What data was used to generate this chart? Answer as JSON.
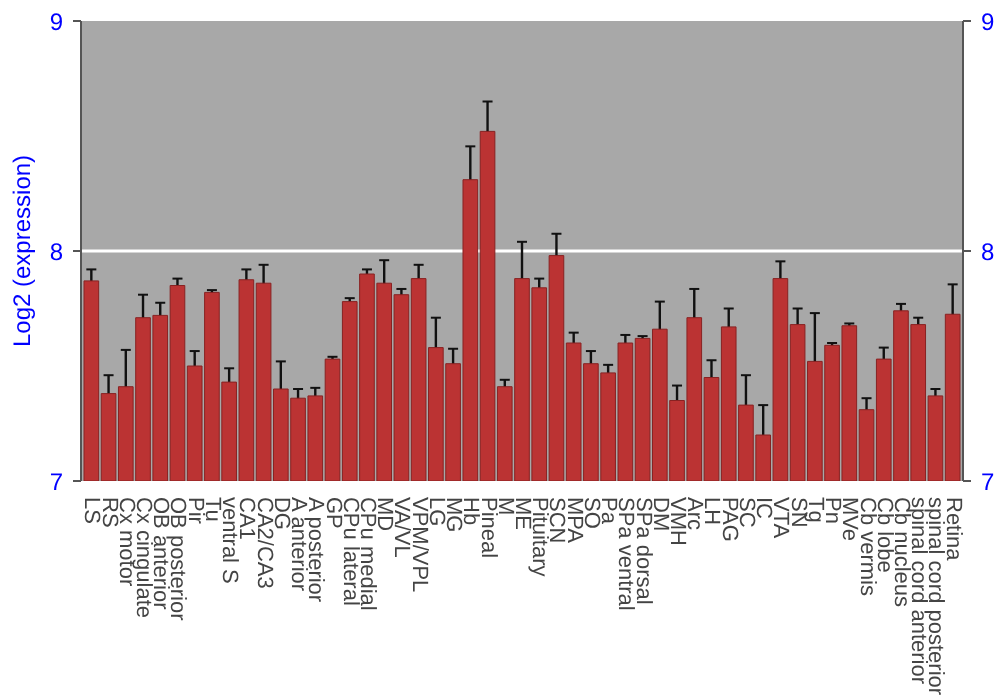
{
  "chart_data": {
    "type": "bar",
    "ylabel": "Log2 (expression)",
    "categories": [
      "LS",
      "RS",
      "Cx motor",
      "Cx cingulate",
      "OB anterior",
      "OB posterior",
      "Pir",
      "Tu",
      "ventral S",
      "CA1",
      "CA2/CA3",
      "DG",
      "A anterior",
      "A posterior",
      "GP",
      "CPu lateral",
      "CPu medial",
      "MD",
      "VA/VL",
      "VPM/VPL",
      "LG",
      "MG",
      "Hb",
      "Pineal",
      "M",
      "ME",
      "Pituitary",
      "SCN",
      "MPA",
      "SO",
      "Pa",
      "SPa ventral",
      "SPa dorsal",
      "DM",
      "VMH",
      "Arc",
      "LH",
      "PAG",
      "SC",
      "IC",
      "VTA",
      "SN",
      "Tg",
      "Pn",
      "MVe",
      "Cb vermis",
      "Cb lobe",
      "Cb nucleus",
      "spinal cord anterior",
      "spinal cord posterior",
      "Retina"
    ],
    "values": [
      7.87,
      7.38,
      7.41,
      7.71,
      7.72,
      7.85,
      7.5,
      7.82,
      7.43,
      7.875,
      7.86,
      7.4,
      7.36,
      7.37,
      7.53,
      7.78,
      7.9,
      7.86,
      7.81,
      7.88,
      7.58,
      7.51,
      8.31,
      8.52,
      7.41,
      7.88,
      7.84,
      7.98,
      7.6,
      7.51,
      7.47,
      7.6,
      7.62,
      7.66,
      7.35,
      7.71,
      7.45,
      7.67,
      7.33,
      7.2,
      7.88,
      7.68,
      7.52,
      7.59,
      7.675,
      7.31,
      7.53,
      7.74,
      7.68,
      7.37,
      7.725
    ],
    "errors": [
      0.05,
      0.08,
      0.16,
      0.1,
      0.055,
      0.03,
      0.065,
      0.01,
      0.06,
      0.045,
      0.08,
      0.12,
      0.04,
      0.035,
      0.01,
      0.015,
      0.02,
      0.1,
      0.025,
      0.06,
      0.13,
      0.065,
      0.145,
      0.13,
      0.03,
      0.16,
      0.04,
      0.095,
      0.045,
      0.055,
      0.035,
      0.035,
      0.01,
      0.12,
      0.065,
      0.125,
      0.075,
      0.08,
      0.13,
      0.13,
      0.075,
      0.07,
      0.21,
      0.01,
      0.01,
      0.05,
      0.05,
      0.03,
      0.03,
      0.03,
      0.13
    ],
    "color": "#bb3333",
    "ylim": [
      7,
      9
    ],
    "yticks": [
      7,
      8,
      9
    ],
    "y2lim": [
      7,
      9
    ],
    "y2ticks": [
      7,
      8,
      9
    ],
    "grid": "y"
  }
}
